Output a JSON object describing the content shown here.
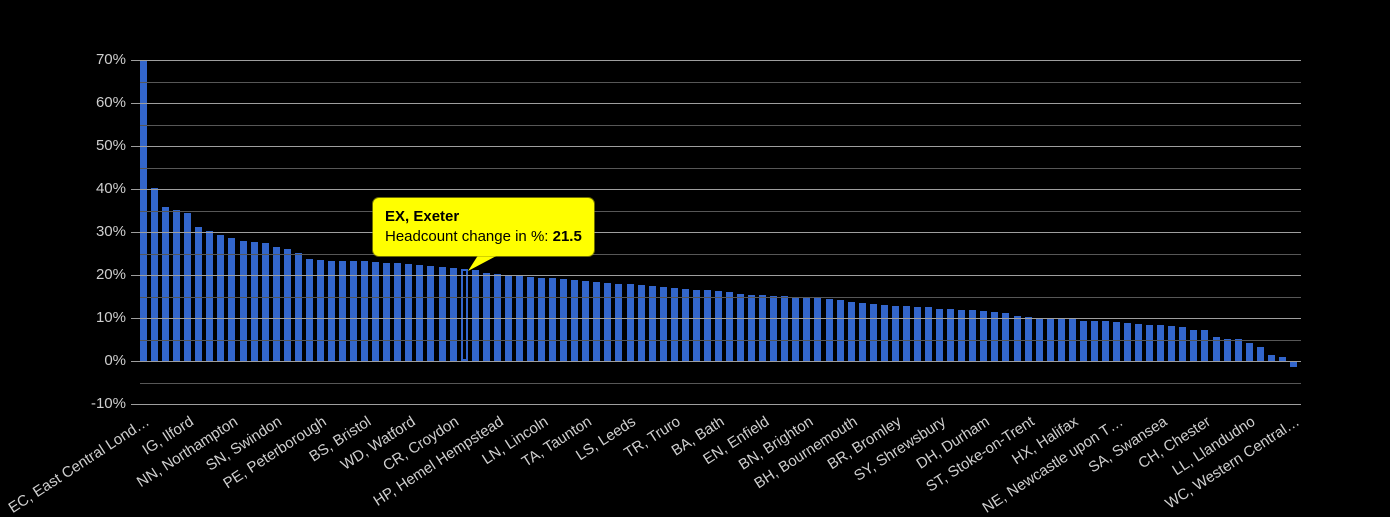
{
  "colors": {
    "background": "#000000",
    "bar": "#3366cc",
    "gridline_major": "#9e9e9e",
    "gridline_minor": "#575757",
    "axis_label": "#cfcfcf",
    "tooltip_bg": "#ffff00"
  },
  "tooltip": {
    "title": "EX, Exeter",
    "value_label": "Headcount change in %: ",
    "value": "21.5"
  },
  "chart_data": {
    "type": "bar",
    "title": "",
    "xlabel": "",
    "ylabel": "Headcount change in %",
    "legend": "none",
    "grid": "on",
    "ylim": [
      -10,
      70
    ],
    "y_axis": {
      "min": -10,
      "max": 70,
      "major_step": 10,
      "minor_step": 5,
      "tick_labels": [
        "70%",
        "60%",
        "50%",
        "40%",
        "30%",
        "20%",
        "10%",
        "0%",
        "-10%"
      ]
    },
    "highlight": {
      "index": 29,
      "name": "EX, Exeter",
      "value": 21.5
    },
    "categories": [
      "EC, East Central Lond…",
      "",
      "",
      "",
      "IG, Ilford",
      "",
      "",
      "",
      "NN, Northampton",
      "",
      "",
      "",
      "SN, Swindon",
      "",
      "",
      "",
      "PE, Peterborough",
      "",
      "",
      "",
      "BS, Bristol",
      "",
      "",
      "",
      "WD, Watford",
      "",
      "",
      "",
      "CR, Croydon",
      "",
      "",
      "",
      "HP, Hemel Hempstead",
      "",
      "",
      "",
      "LN, Lincoln",
      "",
      "",
      "",
      "TA, Taunton",
      "",
      "",
      "",
      "LS, Leeds",
      "",
      "",
      "",
      "TR, Truro",
      "",
      "",
      "",
      "BA, Bath",
      "",
      "",
      "",
      "EN, Enfield",
      "",
      "",
      "",
      "BN, Brighton",
      "",
      "",
      "",
      "BH, Bournemouth",
      "",
      "",
      "",
      "BR, Bromley",
      "",
      "",
      "",
      "SY, Shrewsbury",
      "",
      "",
      "",
      "DH, Durham",
      "",
      "",
      "",
      "ST, Stoke-on-Trent",
      "",
      "",
      "",
      "HX, Halifax",
      "",
      "",
      "",
      "NE, Newcastle upon T…",
      "",
      "",
      "",
      "SA, Swansea",
      "",
      "",
      "",
      "CH, Chester",
      "",
      "",
      "",
      "LL, Llandudno",
      "",
      "",
      "",
      "WC, Western Central…"
    ],
    "values": [
      69.9,
      40.3,
      35.9,
      35.1,
      34.5,
      31.2,
      30.3,
      29.2,
      28.5,
      27.9,
      27.7,
      27.5,
      26.5,
      26.0,
      25.1,
      23.8,
      23.4,
      23.35,
      23.3,
      23.25,
      23.2,
      23.1,
      22.9,
      22.7,
      22.6,
      22.3,
      22.0,
      21.8,
      21.6,
      21.5,
      21.1,
      20.4,
      20.2,
      19.9,
      19.7,
      19.5,
      19.4,
      19.2,
      19.0,
      18.9,
      18.6,
      18.4,
      18.1,
      17.9,
      17.8,
      17.6,
      17.4,
      17.2,
      16.9,
      16.7,
      16.5,
      16.4,
      16.2,
      16.0,
      15.5,
      15.4,
      15.3,
      15.2,
      15.1,
      15.0,
      14.9,
      14.7,
      14.4,
      14.2,
      13.7,
      13.4,
      13.3,
      13.0,
      12.9,
      12.8,
      12.6,
      12.5,
      12.2,
      12.1,
      11.9,
      11.8,
      11.6,
      11.4,
      11.2,
      10.4,
      10.3,
      10.1,
      10.0,
      10.0,
      9.9,
      9.4,
      9.3,
      9.2,
      9.0,
      8.8,
      8.5,
      8.4,
      8.3,
      8.1,
      7.8,
      7.2,
      7.1,
      5.5,
      5.2,
      5.1,
      4.3,
      3.2,
      1.4,
      0.9,
      -1.5
    ]
  }
}
